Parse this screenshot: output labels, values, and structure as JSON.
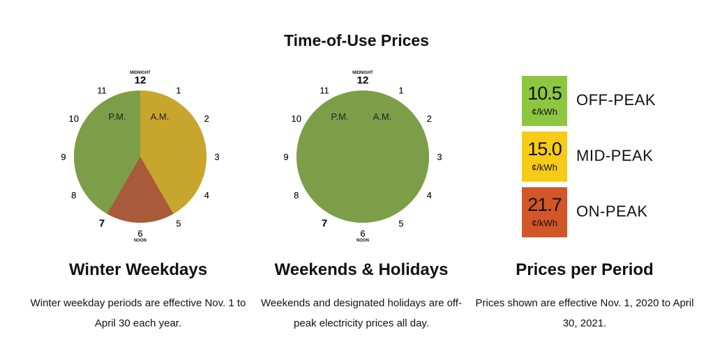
{
  "title": "Time-of-Use Prices",
  "colors": {
    "off_peak": "#8dc63f",
    "off_peak_dark": "#7c9e49",
    "mid_peak": "#f7cb16",
    "mid_peak_dark": "#c8a52c",
    "on_peak": "#d25628",
    "on_peak_dark": "#a85a3a"
  },
  "clock_labels": {
    "midnight": "MIDNIGHT",
    "noon": "NOON",
    "am": "A.M.",
    "pm": "P.M."
  },
  "chart_data": [
    {
      "type": "pie",
      "title": "Winter Weekdays",
      "note": "Winter weekday periods are effective Nov. 1 to April 30 each year.",
      "segments": [
        {
          "start_hour": 0,
          "end_hour": 7,
          "period": "off_peak"
        },
        {
          "start_hour": 7,
          "end_hour": 11,
          "period": "on_peak"
        },
        {
          "start_hour": 11,
          "end_hour": 12,
          "period": "mid_peak"
        },
        {
          "start_hour": 12,
          "end_hour": 17,
          "period": "mid_peak"
        },
        {
          "start_hour": 17,
          "end_hour": 19,
          "period": "on_peak"
        },
        {
          "start_hour": 19,
          "end_hour": 24,
          "period": "off_peak"
        }
      ],
      "hour_labels": [
        "12",
        "1",
        "2",
        "3",
        "4",
        "5",
        "6",
        "7",
        "8",
        "9",
        "10",
        "11",
        "12",
        "1",
        "2",
        "3",
        "4",
        "5",
        "6",
        "7",
        "8",
        "9",
        "10",
        "11"
      ],
      "bold_hours": [
        0,
        7,
        12,
        19
      ]
    },
    {
      "type": "pie",
      "title": "Weekends & Holidays",
      "note": "Weekends and designated holidays are off-peak electricity prices all day.",
      "segments": [
        {
          "start_hour": 0,
          "end_hour": 12,
          "period": "off_peak"
        },
        {
          "start_hour": 12,
          "end_hour": 24,
          "period": "off_peak"
        }
      ],
      "hour_labels": [
        "12",
        "1",
        "2",
        "3",
        "4",
        "5",
        "6",
        "7",
        "8",
        "9",
        "10",
        "11",
        "12",
        "1",
        "2",
        "3",
        "4",
        "5",
        "6",
        "7",
        "8",
        "9",
        "10",
        "11"
      ],
      "bold_hours": [
        0,
        7,
        12,
        19
      ]
    }
  ],
  "prices": {
    "title": "Prices per Period",
    "note": "Prices shown are effective Nov. 1, 2020 to April 30, 2021.",
    "items": [
      {
        "value": "10.5",
        "unit": "¢/kWh",
        "label": "OFF-PEAK",
        "period": "off_peak"
      },
      {
        "value": "15.0",
        "unit": "¢/kWh",
        "label": "MID-PEAK",
        "period": "mid_peak"
      },
      {
        "value": "21.7",
        "unit": "¢/kWh",
        "label": "ON-PEAK",
        "period": "on_peak"
      }
    ]
  }
}
